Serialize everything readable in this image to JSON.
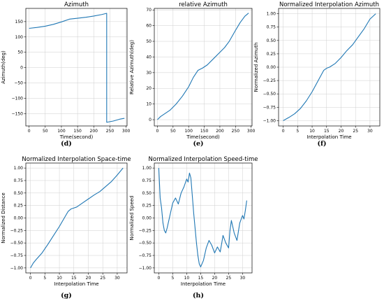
{
  "colors": {
    "series": "#1f77b4"
  },
  "chart_data": [
    {
      "type": "line",
      "caption": "(d)",
      "title": "Azimuth",
      "xlabel": "Time(second)",
      "ylabel": "Azimuth(deg)",
      "xlim": [
        -10,
        303
      ],
      "ylim": [
        -190,
        193
      ],
      "xticks": [
        0,
        50,
        100,
        150,
        200,
        250,
        300
      ],
      "xticklabels": [
        "0",
        "50",
        "100",
        "150",
        "200",
        "250",
        "300"
      ],
      "yticks": [
        -150,
        -100,
        -50,
        0,
        50,
        100,
        150
      ],
      "yticklabels": [
        "−150",
        "−100",
        "−50",
        "0",
        "50",
        "100",
        "150"
      ],
      "grid": true,
      "series": [
        {
          "x": [
            0,
            25,
            50,
            75,
            100,
            125,
            150,
            175,
            200,
            225,
            240,
            240,
            260,
            280,
            295
          ],
          "y": [
            128,
            131,
            135,
            141,
            149,
            158,
            161,
            164,
            168,
            173,
            177,
            -178,
            -174,
            -168,
            -165
          ]
        }
      ]
    },
    {
      "type": "line",
      "caption": "(e)",
      "title": "relative Azimuth",
      "xlabel": "Time(second)",
      "ylabel": "Relative Azimuth(deg)",
      "xlim": [
        -10,
        303
      ],
      "ylim": [
        -4,
        71
      ],
      "xticks": [
        0,
        50,
        100,
        150,
        200,
        250,
        300
      ],
      "xticklabels": [
        "0",
        "50",
        "100",
        "150",
        "200",
        "250",
        "300"
      ],
      "yticks": [
        0,
        10,
        20,
        30,
        40,
        50,
        60,
        70
      ],
      "yticklabels": [
        "0",
        "10",
        "20",
        "30",
        "40",
        "50",
        "60",
        "70"
      ],
      "grid": true,
      "series": [
        {
          "x": [
            0,
            10,
            25,
            40,
            60,
            80,
            100,
            115,
            130,
            145,
            160,
            180,
            200,
            215,
            230,
            250,
            265,
            280,
            292
          ],
          "y": [
            0,
            2,
            4,
            6,
            10,
            15,
            21,
            27,
            31.5,
            33,
            35,
            39,
            43,
            46,
            50,
            57,
            62,
            66,
            68
          ]
        }
      ]
    },
    {
      "type": "line",
      "caption": "(f)",
      "title": "Normalized Interpolation  Azimuth",
      "xlabel": "Interpolation Time",
      "ylabel": "Normalized Azimuth",
      "xlim": [
        -1.6,
        33.4
      ],
      "ylim": [
        -1.1,
        1.1
      ],
      "xticks": [
        0,
        5,
        10,
        15,
        20,
        25,
        30
      ],
      "xticklabels": [
        "0",
        "5",
        "10",
        "15",
        "20",
        "25",
        "30"
      ],
      "yticks": [
        -1.0,
        -0.75,
        -0.5,
        -0.25,
        0.0,
        0.25,
        0.5,
        0.75,
        1.0
      ],
      "yticklabels": [
        "−1.00",
        "−0.75",
        "−0.50",
        "−0.25",
        "0.00",
        "0.25",
        "0.50",
        "0.75",
        "1.00"
      ],
      "grid": true,
      "series": [
        {
          "x": [
            0,
            2,
            4,
            6,
            8,
            10,
            12,
            14,
            15,
            16,
            18,
            20,
            22,
            24,
            26,
            28,
            30,
            32
          ],
          "y": [
            -1.0,
            -0.94,
            -0.87,
            -0.77,
            -0.63,
            -0.46,
            -0.26,
            -0.06,
            -0.02,
            0.0,
            0.07,
            0.18,
            0.31,
            0.42,
            0.57,
            0.72,
            0.9,
            1.0
          ]
        }
      ]
    },
    {
      "type": "line",
      "caption": "(g)",
      "title": "Normalized Interpolation Space-time",
      "xlabel": "Interpolation Time",
      "ylabel": "Normalized Distance",
      "xlim": [
        -1.6,
        33.4
      ],
      "ylim": [
        -1.1,
        1.1
      ],
      "xticks": [
        0,
        5,
        10,
        15,
        20,
        25,
        30
      ],
      "xticklabels": [
        "0",
        "5",
        "10",
        "15",
        "20",
        "25",
        "30"
      ],
      "yticks": [
        -1.0,
        -0.75,
        -0.5,
        -0.25,
        0.0,
        0.25,
        0.5,
        0.75,
        1.0
      ],
      "yticklabels": [
        "−1.00",
        "−0.75",
        "−0.50",
        "−0.25",
        "0.00",
        "0.25",
        "0.50",
        "0.75",
        "1.00"
      ],
      "grid": true,
      "series": [
        {
          "x": [
            0,
            1,
            2,
            4,
            6,
            8,
            10,
            12,
            13,
            14,
            15,
            16,
            18,
            20,
            22,
            24,
            26,
            28,
            30,
            32
          ],
          "y": [
            -1.0,
            -0.9,
            -0.83,
            -0.7,
            -0.53,
            -0.35,
            -0.17,
            0.03,
            0.13,
            0.18,
            0.2,
            0.22,
            0.3,
            0.38,
            0.46,
            0.53,
            0.63,
            0.73,
            0.86,
            1.0
          ]
        }
      ]
    },
    {
      "type": "line",
      "caption": "(h)",
      "title": "Normalized Interpolation Speed-time",
      "xlabel": "Interpolation Time",
      "ylabel": "Normalized Speed",
      "xlim": [
        -1.6,
        33.4
      ],
      "ylim": [
        -1.1,
        1.1
      ],
      "xticks": [
        0,
        5,
        10,
        15,
        20,
        25,
        30
      ],
      "xticklabels": [
        "0",
        "5",
        "10",
        "15",
        "20",
        "25",
        "30"
      ],
      "yticks": [
        -1.0,
        -0.75,
        -0.5,
        -0.25,
        0.0,
        0.25,
        0.5,
        0.75,
        1.0
      ],
      "yticklabels": [
        "−1.00",
        "−0.75",
        "−0.50",
        "−0.25",
        "0.00",
        "0.25",
        "0.50",
        "0.75",
        "1.00"
      ],
      "grid": true,
      "series": [
        {
          "x": [
            0,
            0.5,
            1,
            1.5,
            2,
            2.5,
            3,
            4,
            5,
            6,
            7,
            8,
            9,
            10,
            10.5,
            11,
            11.5,
            12,
            12.5,
            13,
            13.5,
            14,
            14.5,
            15,
            16,
            17,
            18,
            19,
            20,
            21,
            22,
            22.5,
            23,
            24,
            25,
            25.5,
            26,
            27,
            28,
            29,
            30,
            30.5,
            31,
            31.5
          ],
          "y": [
            1.0,
            0.4,
            0.2,
            -0.1,
            -0.25,
            -0.3,
            -0.2,
            0.05,
            0.3,
            0.4,
            0.28,
            0.5,
            0.62,
            0.78,
            0.72,
            0.9,
            0.8,
            0.45,
            0.1,
            -0.2,
            -0.5,
            -0.75,
            -0.92,
            -0.98,
            -0.85,
            -0.6,
            -0.45,
            -0.55,
            -0.7,
            -0.58,
            -0.68,
            -0.52,
            -0.35,
            -0.5,
            -0.6,
            -0.25,
            -0.05,
            -0.3,
            -0.45,
            -0.1,
            0.05,
            -0.02,
            0.15,
            0.35
          ]
        }
      ]
    }
  ]
}
